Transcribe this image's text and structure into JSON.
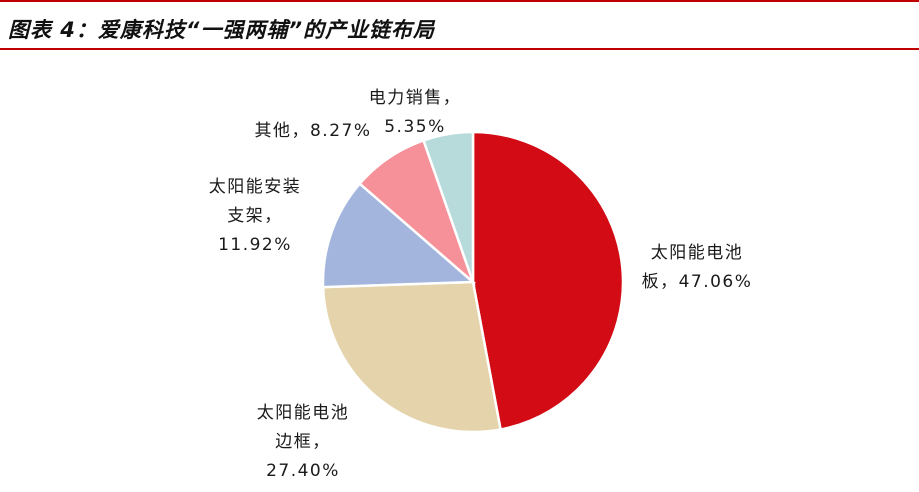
{
  "title": "图表 4：爱康科技“一强两辅”的产业链布局",
  "chart_data": {
    "type": "pie",
    "slices": [
      {
        "label": "太阳能电池板",
        "value": 47.06,
        "color": "#d30b15",
        "label_lines": [
          "太阳能电池",
          "板，47.06%"
        ]
      },
      {
        "label": "太阳能电池边框",
        "value": 27.4,
        "color": "#e4d3ab",
        "label_lines": [
          "太阳能电池",
          "边框，",
          "27.40%"
        ]
      },
      {
        "label": "太阳能安装支架",
        "value": 11.92,
        "color": "#a3b5dd",
        "label_lines": [
          "太阳能安装",
          "支架，",
          "11.92%"
        ]
      },
      {
        "label": "其他",
        "value": 8.27,
        "color": "#f6919a",
        "label_lines": [
          "其他，8.27%"
        ]
      },
      {
        "label": "电力销售",
        "value": 5.35,
        "color": "#b7dadb",
        "label_lines": [
          "电力销售，",
          "5.35%"
        ]
      }
    ]
  }
}
